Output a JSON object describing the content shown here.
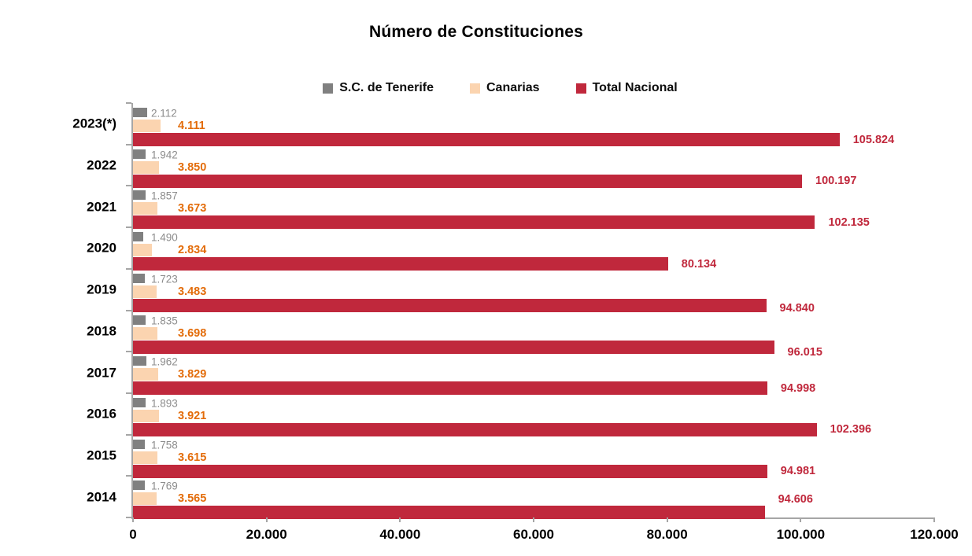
{
  "title": "Número de Constituciones",
  "colors": {
    "tenerife_bar": "#808080",
    "canarias_bar": "#FBD4B0",
    "nacional_bar": "#C0283C",
    "tenerife_label": "#8C8C8C",
    "canarias_label": "#E36C0A",
    "nacional_label": "#C0283C",
    "axis": "#A6A6A6"
  },
  "chart_data": {
    "type": "bar",
    "orientation": "horizontal",
    "title": "Número de Constituciones",
    "categories": [
      "2023(*)",
      "2022",
      "2021",
      "2020",
      "2019",
      "2018",
      "2017",
      "2016",
      "2015",
      "2014"
    ],
    "series": [
      {
        "name": "S.C. de Tenerife",
        "color": "#808080",
        "values": [
          2112,
          1942,
          1857,
          1490,
          1723,
          1835,
          1962,
          1893,
          1758,
          1769
        ],
        "labels": [
          "2.112",
          "1.942",
          "1.857",
          "1.490",
          "1.723",
          "1.835",
          "1.962",
          "1.893",
          "1.758",
          "1.769"
        ]
      },
      {
        "name": "Canarias",
        "color": "#FBD4B0",
        "values": [
          4111,
          3850,
          3673,
          2834,
          3483,
          3698,
          3829,
          3921,
          3615,
          3565
        ],
        "labels": [
          "4.111",
          "3.850",
          "3.673",
          "2.834",
          "3.483",
          "3.698",
          "3.829",
          "3.921",
          "3.615",
          "3.565"
        ]
      },
      {
        "name": "Total Nacional",
        "color": "#C0283C",
        "values": [
          105824,
          100197,
          102135,
          80134,
          94840,
          96015,
          94998,
          102396,
          94981,
          94606
        ],
        "labels": [
          "105.824",
          "100.197",
          "102.135",
          "80.134",
          "94.840",
          "96.015",
          "94.998",
          "102.396",
          "94.981",
          "94.606"
        ]
      }
    ],
    "xlim": [
      0,
      120000
    ],
    "x_ticks": [
      {
        "value": 0,
        "label": "0"
      },
      {
        "value": 20000,
        "label": "20.000"
      },
      {
        "value": 40000,
        "label": "40.000"
      },
      {
        "value": 60000,
        "label": "60.000"
      },
      {
        "value": 80000,
        "label": "80.000"
      },
      {
        "value": 100000,
        "label": "100.000"
      },
      {
        "value": 120000,
        "label": "120.000"
      }
    ],
    "legend_position": "top",
    "gridlines": false,
    "nacional_label_dy": [
      0,
      0,
      0,
      0,
      4,
      7,
      0,
      0,
      0,
      -17
    ]
  }
}
